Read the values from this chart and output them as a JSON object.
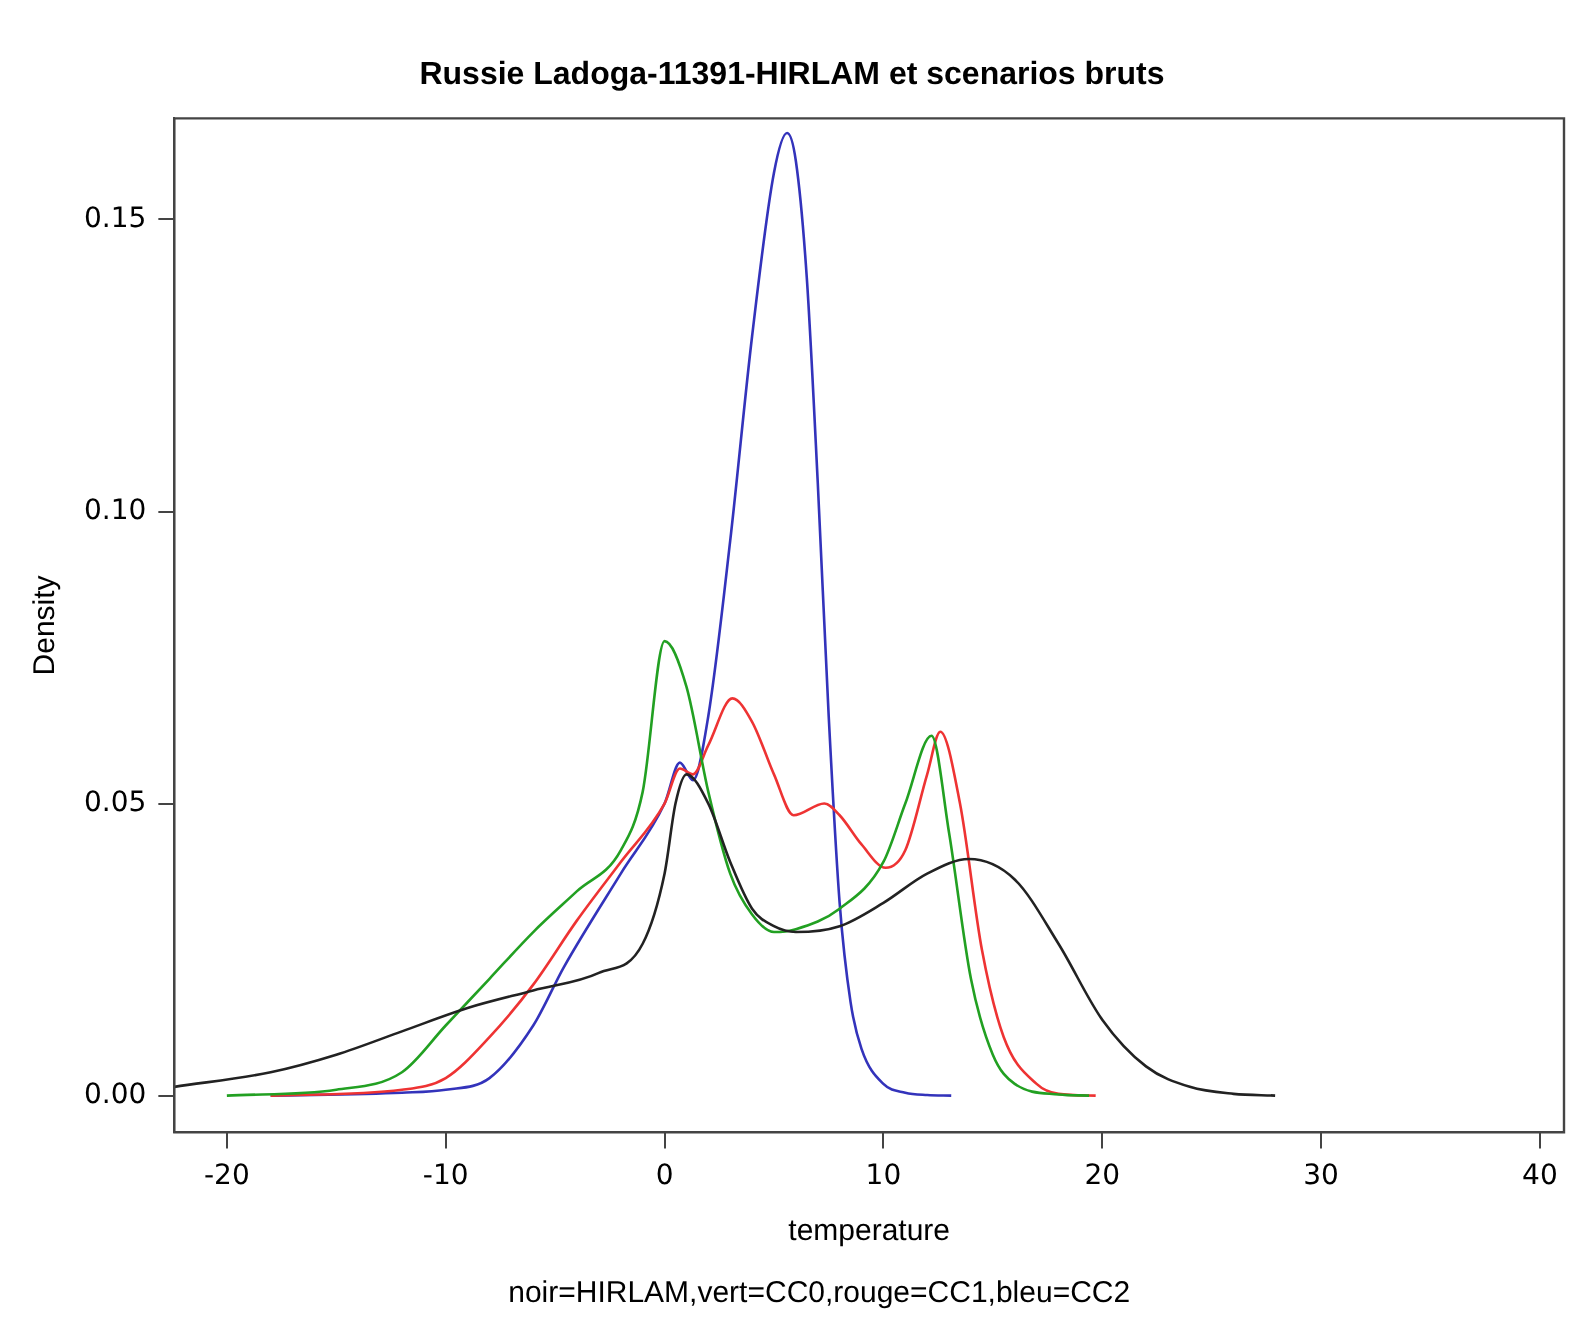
{
  "chart_data": {
    "type": "line",
    "title": "Russie Ladoga-11391-HIRLAM et scenarios bruts",
    "xlabel": "temperature",
    "ylabel": "Density",
    "annotations": [
      "noir=HIRLAM,vert=CC0,rouge=CC1,bleu=CC2"
    ],
    "xlim": [
      -22.4,
      41.1
    ],
    "xticks": [
      -20,
      -10,
      0,
      10,
      20,
      30,
      40
    ],
    "ylim": [
      -0.0063,
      0.1673
    ],
    "yticks": [
      {
        "value": 0,
        "label": "0.00"
      },
      {
        "value": 0.05,
        "label": "0.05"
      },
      {
        "value": 0.1,
        "label": "0.10"
      },
      {
        "value": 0.15,
        "label": "0.15"
      }
    ],
    "grid": false,
    "legend": false,
    "marker": "none",
    "line_style": "solid",
    "series": [
      {
        "color": "#222222",
        "x": [
          -22.4,
          -18,
          -15,
          -12,
          -9,
          -6,
          -3,
          -1,
          0,
          0.5,
          1,
          2,
          3,
          4,
          5,
          6,
          8,
          10,
          12,
          13.9,
          16,
          18,
          20,
          22,
          24,
          26,
          27.9
        ],
        "values": [
          0.0015,
          0.004,
          0.007,
          0.011,
          0.015,
          0.018,
          0.021,
          0.026,
          0.038,
          0.05,
          0.055,
          0.05,
          0.04,
          0.032,
          0.029,
          0.028,
          0.029,
          0.033,
          0.038,
          0.0405,
          0.037,
          0.026,
          0.013,
          0.005,
          0.0015,
          0.0003,
          0
        ]
      },
      {
        "color": "#22a022",
        "x": [
          -20,
          -15,
          -12,
          -10,
          -8,
          -6,
          -4,
          -2,
          -1,
          0,
          1,
          2,
          3,
          4,
          5,
          6,
          8,
          10,
          11,
          12.2,
          13,
          14,
          15,
          16,
          18,
          19.4
        ],
        "values": [
          0,
          0.001,
          0.004,
          0.012,
          0.02,
          0.028,
          0.035,
          0.042,
          0.052,
          0.0778,
          0.07,
          0.052,
          0.038,
          0.031,
          0.028,
          0.0285,
          0.032,
          0.04,
          0.05,
          0.0616,
          0.045,
          0.02,
          0.007,
          0.002,
          0.0002,
          0
        ]
      },
      {
        "color": "#ee3333",
        "x": [
          -18,
          -12,
          -10,
          -8,
          -6,
          -4,
          -2,
          0,
          0.7,
          1.3,
          2,
          3.1,
          4,
          5,
          5.9,
          7.3,
          8,
          9,
          10.1,
          11,
          12,
          12.6,
          13.5,
          14.5,
          15.5,
          17,
          18,
          19.7
        ],
        "values": [
          0,
          0.001,
          0.003,
          0.01,
          0.019,
          0.03,
          0.04,
          0.05,
          0.056,
          0.055,
          0.06,
          0.068,
          0.064,
          0.055,
          0.048,
          0.05,
          0.048,
          0.043,
          0.039,
          0.042,
          0.055,
          0.0623,
          0.05,
          0.025,
          0.01,
          0.002,
          0.0003,
          0
        ]
      },
      {
        "color": "#3333bb",
        "x": [
          -18,
          -12,
          -10,
          -8,
          -6,
          -4.6,
          -2,
          0,
          0.7,
          1.3,
          2,
          3,
          4,
          5,
          5.6,
          6,
          6.5,
          7,
          7.5,
          8,
          8.5,
          9,
          10,
          11,
          12,
          13.1
        ],
        "values": [
          0,
          0.0005,
          0.001,
          0.003,
          0.012,
          0.022,
          0.038,
          0.05,
          0.057,
          0.054,
          0.065,
          0.095,
          0.13,
          0.158,
          0.1648,
          0.16,
          0.14,
          0.105,
          0.065,
          0.033,
          0.016,
          0.008,
          0.002,
          0.0005,
          0.0001,
          0
        ]
      }
    ]
  }
}
